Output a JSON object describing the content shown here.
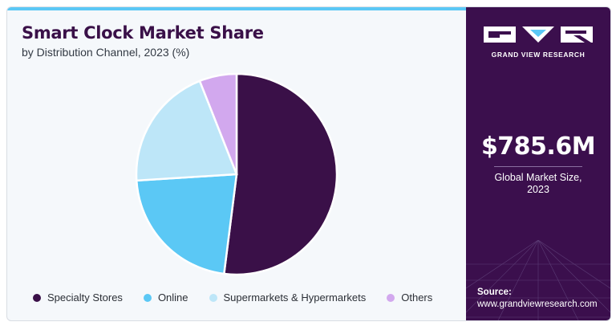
{
  "title": "Smart Clock Market Share",
  "subtitle": "by Distribution Channel, 2023 (%)",
  "brand": {
    "name": "GRAND VIEW RESEARCH",
    "logo_icon": "gvr-logo-icon"
  },
  "sidebar": {
    "stat_value": "$785.6M",
    "stat_label_line1": "Global Market Size,",
    "stat_label_line2": "2023",
    "source_label": "Source:",
    "source_url": "www.grandviewresearch.com"
  },
  "colors": {
    "accent": "#5bc8f5",
    "brand_purple": "#3b0f4d"
  },
  "chart_data": {
    "type": "pie",
    "categories": [
      "Specialty Stores",
      "Online",
      "Supermarkets & Hypermarkets",
      "Others"
    ],
    "values": [
      52,
      22,
      20,
      6
    ],
    "colors": [
      "#3a1048",
      "#5bc8f5",
      "#bde6f8",
      "#d2a8ee"
    ],
    "legend_position": "bottom"
  }
}
